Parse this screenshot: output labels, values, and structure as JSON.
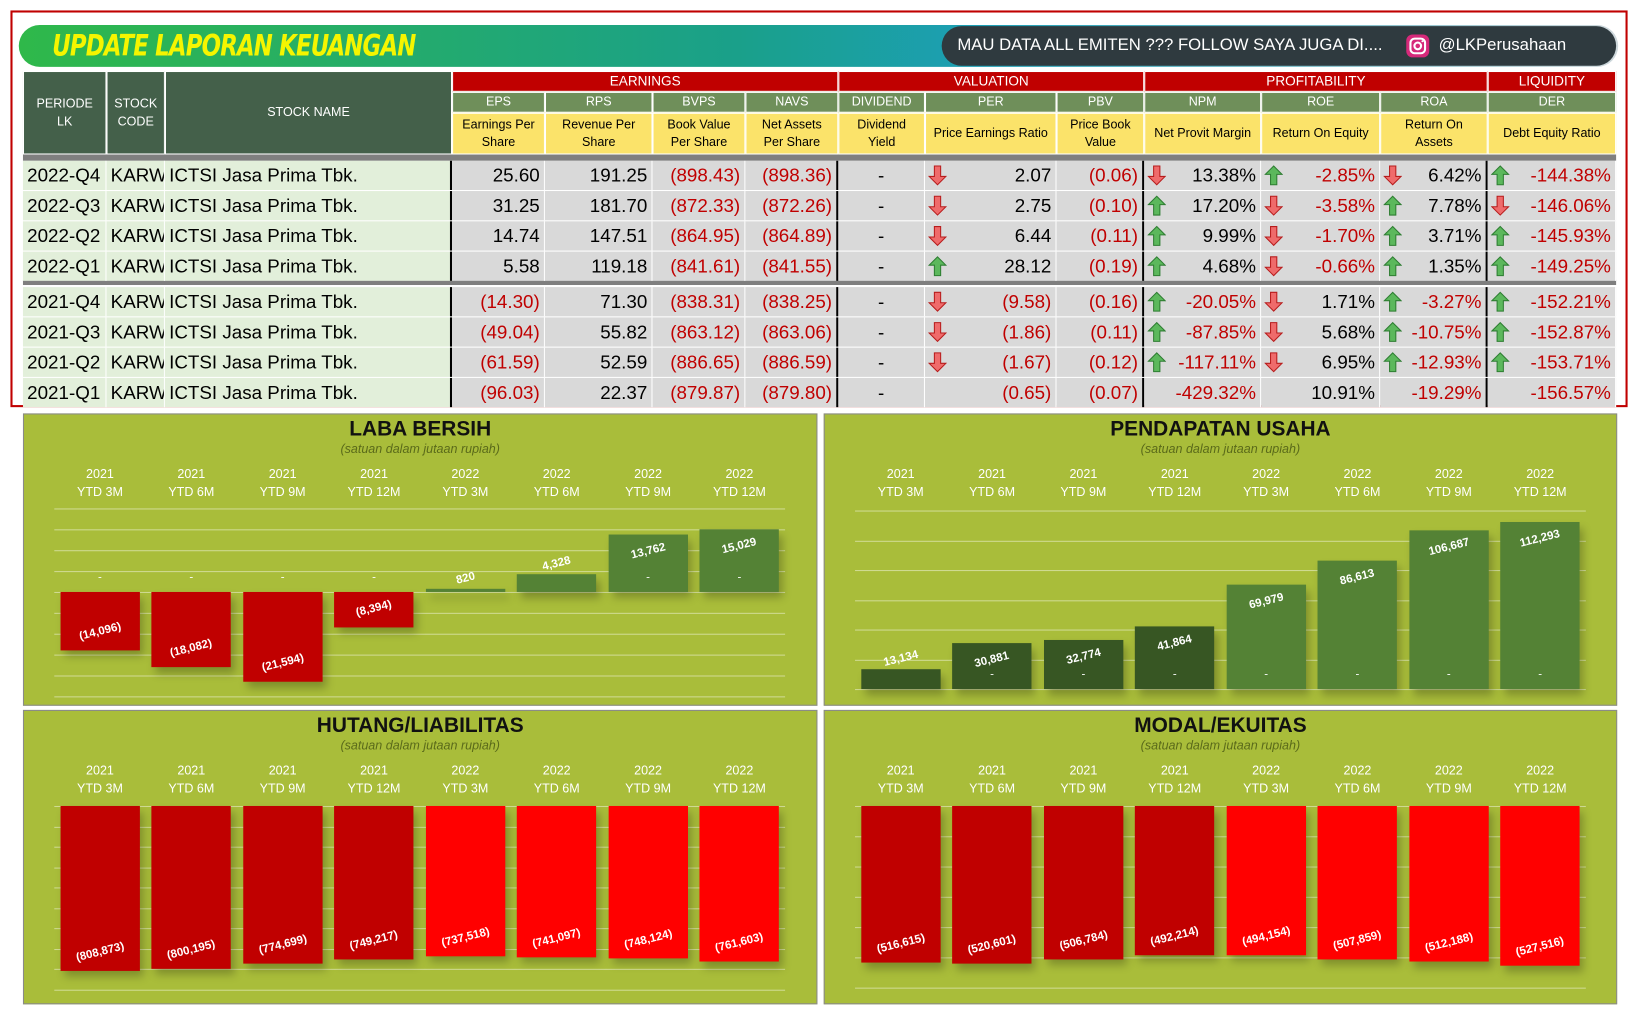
{
  "header": {
    "title": "UPDATE LAPORAN KEUANGAN",
    "follow": "MAU DATA ALL EMITEN ??? FOLLOW SAYA JUGA DI....",
    "handle": "@LKPerusahaan"
  },
  "table": {
    "fixed_headers": [
      "PERIODE LK",
      "STOCK CODE",
      "STOCK NAME"
    ],
    "groups": [
      "EARNINGS",
      "VALUATION",
      "PROFITABILITY",
      "LIQUIDITY"
    ],
    "columns": [
      {
        "code": "EPS",
        "desc": "Earnings Per Share"
      },
      {
        "code": "RPS",
        "desc": "Revenue Per Share"
      },
      {
        "code": "BVPS",
        "desc": "Book Value Per Share"
      },
      {
        "code": "NAVS",
        "desc": "Net Assets Per Share"
      },
      {
        "code": "DIVIDEND",
        "desc": "Dividend Yield"
      },
      {
        "code": "PER",
        "desc": "Price Earnings Ratio"
      },
      {
        "code": "PBV",
        "desc": "Price Book Value"
      },
      {
        "code": "NPM",
        "desc": "Net Provit Margin"
      },
      {
        "code": "ROE",
        "desc": "Return On Equity"
      },
      {
        "code": "ROA",
        "desc": "Return On Assets"
      },
      {
        "code": "DER",
        "desc": "Debt Equity Ratio"
      }
    ],
    "rows": [
      [
        "2022-Q4",
        "KARW",
        "ICTSI Jasa Prima Tbk.",
        "25.60",
        "191.25",
        "(898.43)",
        "(898.36)",
        "-",
        "2.07",
        "(0.06)",
        "13.38%",
        "-2.85%",
        "6.42%",
        "-144.38%"
      ],
      [
        "2022-Q3",
        "KARW",
        "ICTSI Jasa Prima Tbk.",
        "31.25",
        "181.70",
        "(872.33)",
        "(872.26)",
        "-",
        "2.75",
        "(0.10)",
        "17.20%",
        "-3.58%",
        "7.78%",
        "-146.06%"
      ],
      [
        "2022-Q2",
        "KARW",
        "ICTSI Jasa Prima Tbk.",
        "14.74",
        "147.51",
        "(864.95)",
        "(864.89)",
        "-",
        "6.44",
        "(0.11)",
        "9.99%",
        "-1.70%",
        "3.71%",
        "-145.93%"
      ],
      [
        "2022-Q1",
        "KARW",
        "ICTSI Jasa Prima Tbk.",
        "5.58",
        "119.18",
        "(841.61)",
        "(841.55)",
        "-",
        "28.12",
        "(0.19)",
        "4.68%",
        "-0.66%",
        "1.35%",
        "-149.25%"
      ],
      [
        "2021-Q4",
        "KARW",
        "ICTSI Jasa Prima Tbk.",
        "(14.30)",
        "71.30",
        "(838.31)",
        "(838.25)",
        "-",
        "(9.58)",
        "(0.16)",
        "-20.05%",
        "1.71%",
        "-3.27%",
        "-152.21%"
      ],
      [
        "2021-Q3",
        "KARW",
        "ICTSI Jasa Prima Tbk.",
        "(49.04)",
        "55.82",
        "(863.12)",
        "(863.06)",
        "-",
        "(1.86)",
        "(0.11)",
        "-87.85%",
        "5.68%",
        "-10.75%",
        "-152.87%"
      ],
      [
        "2021-Q2",
        "KARW",
        "ICTSI Jasa Prima Tbk.",
        "(61.59)",
        "52.59",
        "(886.65)",
        "(886.59)",
        "-",
        "(1.67)",
        "(0.12)",
        "-117.11%",
        "6.95%",
        "-12.93%",
        "-153.71%"
      ],
      [
        "2021-Q1",
        "KARW",
        "ICTSI Jasa Prima Tbk.",
        "(96.03)",
        "22.37",
        "(879.87)",
        "(879.80)",
        "-",
        "(0.65)",
        "(0.07)",
        "-429.32%",
        "10.91%",
        "-19.29%",
        "-156.57%"
      ]
    ],
    "arrows": [
      [
        "down",
        "down",
        "up",
        "down",
        "up"
      ],
      [
        "down",
        "up",
        "down",
        "up",
        "down"
      ],
      [
        "down",
        "up",
        "down",
        "up",
        "up"
      ],
      [
        "up",
        "up",
        "down",
        "up",
        "up"
      ],
      [
        "down",
        "up",
        "down",
        "up",
        "up"
      ],
      [
        "down",
        "up",
        "down",
        "up",
        "up"
      ],
      [
        "down",
        "up",
        "down",
        "up",
        "up"
      ],
      [
        null,
        null,
        null,
        null,
        null
      ]
    ]
  },
  "chart_data": [
    {
      "type": "bar",
      "title": "LABA BERSIH",
      "subtitle": "(satuan dalam jutaan rupiah)",
      "categories": [
        "2021\nYTD 3M",
        "2021\nYTD 6M",
        "2021\nYTD 9M",
        "2021\nYTD 12M",
        "2022\nYTD 3M",
        "2022\nYTD 6M",
        "2022\nYTD 9M",
        "2022\nYTD 12M"
      ],
      "series": [
        {
          "values": [
            -14096,
            -18082,
            -21594,
            -8394,
            820,
            4328,
            13762,
            15029
          ],
          "value_labels": [
            "(14,096)",
            "(18,082)",
            "(21,594)",
            "(8,394)",
            "820",
            "4,328",
            "13,762",
            "15,029"
          ],
          "colors": [
            "#c00000",
            "#c00000",
            "#c00000",
            "#c00000",
            "#548235",
            "#548235",
            "#548235",
            "#548235"
          ]
        },
        {
          "values": [
            0,
            0,
            0,
            0,
            null,
            null,
            0,
            0
          ],
          "value_labels": [
            "-",
            "-",
            "-",
            "-",
            null,
            null,
            "-",
            "-"
          ]
        }
      ],
      "ylim": [
        -25000,
        20000
      ],
      "yticks": [
        -25000,
        -20000,
        -15000,
        -10000,
        -5000,
        0,
        5000,
        10000,
        15000,
        20000
      ],
      "grid": true
    },
    {
      "type": "bar",
      "title": "PENDAPATAN USAHA",
      "subtitle": "(satuan dalam jutaan rupiah)",
      "categories": [
        "2021\nYTD 3M",
        "2021\nYTD 6M",
        "2021\nYTD 9M",
        "2021\nYTD 12M",
        "2022\nYTD 3M",
        "2022\nYTD 6M",
        "2022\nYTD 9M",
        "2022\nYTD 12M"
      ],
      "series": [
        {
          "values": [
            13134,
            30881,
            32774,
            41864,
            69979,
            86613,
            106687,
            112293
          ],
          "value_labels": [
            "13,134",
            "30,881",
            "32,774",
            "41,864",
            "69,979",
            "86,613",
            "106,687",
            "112,293"
          ],
          "colors": [
            "#375623",
            "#375623",
            "#375623",
            "#375623",
            "#548235",
            "#548235",
            "#548235",
            "#548235"
          ]
        },
        {
          "values": [
            null,
            0,
            0,
            0,
            0,
            0,
            0,
            0
          ],
          "value_labels": [
            null,
            "-",
            "-",
            "-",
            "-",
            "-",
            "-",
            "-"
          ]
        }
      ],
      "ylim": [
        0,
        120000
      ],
      "yticks": [
        0,
        20000,
        40000,
        60000,
        80000,
        100000,
        120000
      ],
      "grid": true
    },
    {
      "type": "bar",
      "title": "HUTANG/LIABILITAS",
      "subtitle": "(satuan dalam jutaan rupiah)",
      "categories": [
        "2021\nYTD 3M",
        "2021\nYTD 6M",
        "2021\nYTD 9M",
        "2021\nYTD 12M",
        "2022\nYTD 3M",
        "2022\nYTD 6M",
        "2022\nYTD 9M",
        "2022\nYTD 12M"
      ],
      "series": [
        {
          "values": [
            -808873,
            -800195,
            -774699,
            -749217,
            -737518,
            -741097,
            -748124,
            -761603
          ],
          "value_labels": [
            "(808,873)",
            "(800,195)",
            "(774,699)",
            "(749,217)",
            "(737,518)",
            "(741,097)",
            "(748,124)",
            "(761,603)"
          ],
          "colors": [
            "#c00000",
            "#c00000",
            "#c00000",
            "#c00000",
            "#ff0000",
            "#ff0000",
            "#ff0000",
            "#ff0000"
          ]
        }
      ],
      "ylim": [
        -900000,
        0
      ],
      "yticks": [
        -900000,
        -800000,
        -700000,
        -600000,
        -500000,
        -400000,
        -300000,
        -200000,
        -100000,
        0
      ],
      "grid": true
    },
    {
      "type": "bar",
      "title": "MODAL/EKUITAS",
      "subtitle": "(satuan dalam jutaan rupiah)",
      "categories": [
        "2021\nYTD 3M",
        "2021\nYTD 6M",
        "2021\nYTD 9M",
        "2021\nYTD 12M",
        "2022\nYTD 3M",
        "2022\nYTD 6M",
        "2022\nYTD 9M",
        "2022\nYTD 12M"
      ],
      "series": [
        {
          "values": [
            -516615,
            -520601,
            -506784,
            -492214,
            -494154,
            -507859,
            -512188,
            -527516
          ],
          "value_labels": [
            "(516,615)",
            "(520,601)",
            "(506,784)",
            "(492,214)",
            "(494,154)",
            "(507,859)",
            "(512,188)",
            "(527,516)"
          ],
          "colors": [
            "#c00000",
            "#c00000",
            "#c00000",
            "#c00000",
            "#ff0000",
            "#ff0000",
            "#ff0000",
            "#ff0000"
          ]
        }
      ],
      "ylim": [
        -600000,
        0
      ],
      "yticks": [
        -600000,
        -500000,
        -400000,
        -300000,
        -200000,
        -100000,
        0
      ],
      "grid": true
    }
  ]
}
